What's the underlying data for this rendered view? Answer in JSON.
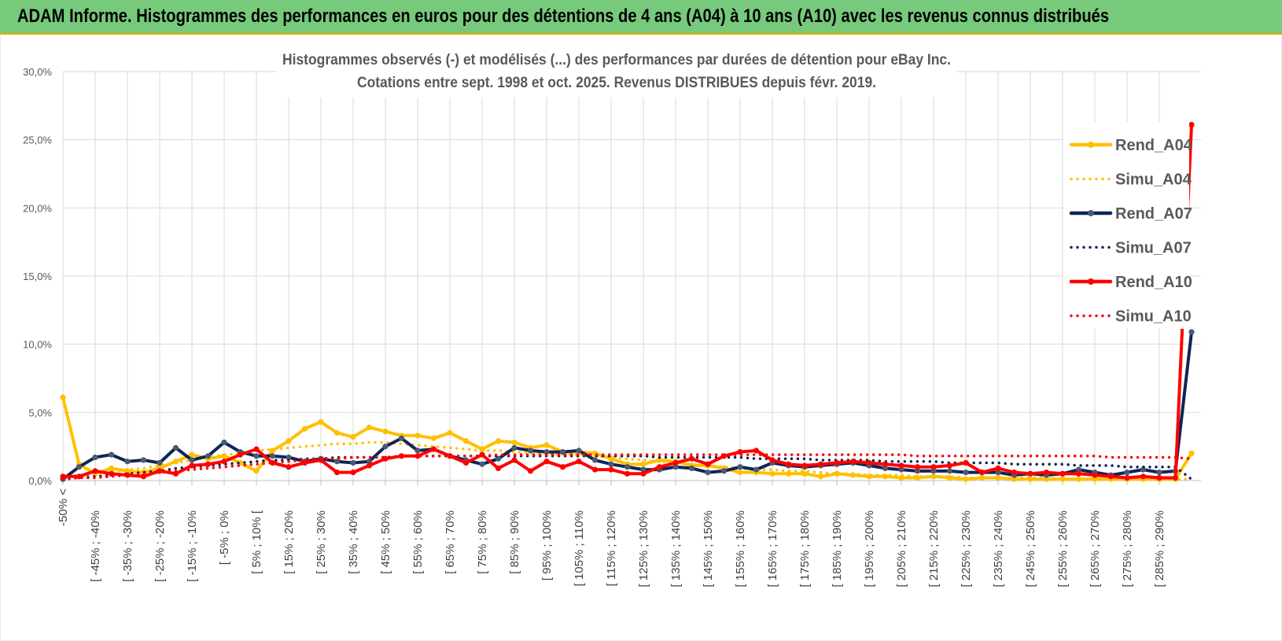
{
  "banner": {
    "title": "ADAM Informe. Histogrammes des performances en euros pour des détentions de 4 ans (A04) à 10 ans (A10) avec les revenus connus distribués"
  },
  "colors": {
    "banner_bg": "#77c97c",
    "banner_border": "#e0b400",
    "a04": "#ffc000",
    "a07": "#0f2557",
    "a07_marker": "#4a5a70",
    "a10": "#ff0000",
    "grid": "#d9d9d9"
  },
  "chart_data": {
    "type": "line",
    "title": "Histogrammes observés (-) et modélisés (...) des performances par durées de détention pour eBay Inc.",
    "subtitle": "Cotations entre sept. 1998 et oct. 2025.  Revenus DISTRIBUES depuis févr. 2019.",
    "ylim": [
      0,
      30
    ],
    "y_ticks": [
      "0,0%",
      "5,0%",
      "10,0%",
      "15,0%",
      "20,0%",
      "25,0%",
      "30,0%"
    ],
    "grid": true,
    "legend_position": "right",
    "category_labels": [
      "-50% <",
      "[ -45% ; -40%",
      "[ -35% ; -30%",
      "[ -25% ; -20%",
      "[ -15% ; -10%",
      "[ -5% ; 0%",
      "[ 5% ; 10% [",
      "[ 15% ; 20%",
      "[ 25% ; 30%",
      "[ 35% ; 40%",
      "[ 45% ; 50%",
      "[ 55% ; 60%",
      "[ 65% ; 70%",
      "[ 75% ; 80%",
      "[ 85% ; 90%",
      "[ 95% ; 100%",
      "[ 105% ; 110%",
      "[ 115% ; 120%",
      "[ 125% ; 130%",
      "[ 135% ; 140%",
      "[ 145% ; 150%",
      "[ 155% ; 160%",
      "[ 165% ; 170%",
      "[ 175% ; 180%",
      "[ 185% ; 190%",
      "[ 195% ; 200%",
      "[ 205% ; 210%",
      "[ 215% ; 220%",
      "[ 225% ; 230%",
      "[ 235% ; 240%",
      "[ 245% ; 250%",
      "[ 255% ; 260%",
      "[ 265% ; 270%",
      "[ 275% ; 280%",
      "[ 285% ; 290%"
    ],
    "series": [
      {
        "name": "Rend_A04",
        "style": "solid",
        "color": "#ffc000",
        "values": [
          6.1,
          1.2,
          0.5,
          0.9,
          0.7,
          0.6,
          0.9,
          1.4,
          1.9,
          1.6,
          1.8,
          1.3,
          0.7,
          2.2,
          2.9,
          3.8,
          4.3,
          3.5,
          3.2,
          3.9,
          3.6,
          3.3,
          3.3,
          3.1,
          3.5,
          2.9,
          2.3,
          2.9,
          2.8,
          2.4,
          2.6,
          2.1,
          2.1,
          2.0,
          1.6,
          1.2,
          1.2,
          1.5,
          1.4,
          1.1,
          1.1,
          0.9,
          0.6,
          0.6,
          0.5,
          0.5,
          0.5,
          0.3,
          0.5,
          0.4,
          0.3,
          0.3,
          0.2,
          0.2,
          0.3,
          0.2,
          0.1,
          0.2,
          0.2,
          0.1,
          0.1,
          0.1,
          0.1,
          0.1,
          0.1,
          0.1,
          0.1,
          0.1,
          0.1,
          0.1,
          2.0
        ]
      },
      {
        "name": "Simu_A04",
        "style": "dotted",
        "color": "#ffc000",
        "values": [
          0.3,
          0.4,
          0.5,
          0.6,
          0.8,
          0.9,
          1.1,
          1.3,
          1.5,
          1.7,
          1.9,
          2.0,
          2.2,
          2.3,
          2.4,
          2.5,
          2.6,
          2.7,
          2.7,
          2.8,
          2.8,
          2.7,
          2.6,
          2.5,
          2.4,
          2.3,
          2.2,
          2.2,
          2.1,
          2.0,
          2.0,
          1.9,
          1.9,
          1.8,
          1.7,
          1.6,
          1.5,
          1.4,
          1.3,
          1.2,
          1.1,
          1.0,
          0.9,
          0.8,
          0.8,
          0.7,
          0.7,
          0.6,
          0.5,
          0.5,
          0.4,
          0.4,
          0.4,
          0.3,
          0.3,
          0.3,
          0.2,
          0.2,
          0.2,
          0.2,
          0.2,
          0.2,
          0.1,
          0.1,
          0.1,
          0.1,
          0.1,
          0.1,
          0.1,
          0.1,
          0.1
        ]
      },
      {
        "name": "Rend_A07",
        "style": "solid",
        "color": "#0f2557",
        "values": [
          0.1,
          1.0,
          1.7,
          1.9,
          1.4,
          1.5,
          1.3,
          2.4,
          1.5,
          1.8,
          2.8,
          2.1,
          1.8,
          1.8,
          1.7,
          1.4,
          1.6,
          1.4,
          1.3,
          1.4,
          2.5,
          3.1,
          2.2,
          2.3,
          1.8,
          1.5,
          1.2,
          1.6,
          2.4,
          2.2,
          2.1,
          2.1,
          2.2,
          1.5,
          1.2,
          1.0,
          0.8,
          0.8,
          1.0,
          0.9,
          0.6,
          0.7,
          1.0,
          0.8,
          1.3,
          1.1,
          1.0,
          1.1,
          1.2,
          1.3,
          1.1,
          0.9,
          0.8,
          0.7,
          0.7,
          0.7,
          0.6,
          0.6,
          0.6,
          0.4,
          0.5,
          0.4,
          0.5,
          0.8,
          0.6,
          0.4,
          0.6,
          0.8,
          0.6,
          0.7,
          10.9
        ]
      },
      {
        "name": "Simu_A07",
        "style": "dotted",
        "color": "#0f2557",
        "values": [
          0.1,
          0.2,
          0.3,
          0.4,
          0.5,
          0.6,
          0.7,
          0.9,
          1.0,
          1.1,
          1.2,
          1.3,
          1.4,
          1.5,
          1.5,
          1.6,
          1.6,
          1.7,
          1.7,
          1.7,
          1.7,
          1.8,
          1.8,
          1.8,
          1.8,
          1.8,
          1.8,
          1.8,
          1.8,
          1.8,
          1.8,
          1.8,
          1.8,
          1.8,
          1.8,
          1.8,
          1.8,
          1.7,
          1.7,
          1.7,
          1.7,
          1.7,
          1.7,
          1.6,
          1.6,
          1.6,
          1.6,
          1.5,
          1.5,
          1.5,
          1.5,
          1.4,
          1.4,
          1.4,
          1.4,
          1.3,
          1.3,
          1.3,
          1.3,
          1.2,
          1.2,
          1.2,
          1.2,
          1.1,
          1.1,
          1.1,
          1.0,
          1.0,
          1.0,
          1.0,
          0.1
        ]
      },
      {
        "name": "Rend_A10",
        "style": "solid",
        "color": "#ff0000",
        "values": [
          0.3,
          0.3,
          0.7,
          0.5,
          0.4,
          0.3,
          0.7,
          0.5,
          1.1,
          1.2,
          1.4,
          1.9,
          2.3,
          1.3,
          1.0,
          1.3,
          1.5,
          0.6,
          0.6,
          1.1,
          1.6,
          1.8,
          1.8,
          2.3,
          1.8,
          1.3,
          1.9,
          0.9,
          1.5,
          0.7,
          1.4,
          1.0,
          1.4,
          0.8,
          0.8,
          0.5,
          0.5,
          1.0,
          1.3,
          1.6,
          1.2,
          1.8,
          2.1,
          2.2,
          1.5,
          1.2,
          1.1,
          1.2,
          1.3,
          1.4,
          1.3,
          1.2,
          1.1,
          1.0,
          1.0,
          1.1,
          1.3,
          0.6,
          0.9,
          0.6,
          0.5,
          0.6,
          0.5,
          0.5,
          0.4,
          0.3,
          0.2,
          0.3,
          0.2,
          0.2,
          26.1
        ]
      },
      {
        "name": "Simu_A10",
        "style": "dotted",
        "color": "#ff0000",
        "values": [
          0.1,
          0.2,
          0.2,
          0.3,
          0.4,
          0.5,
          0.6,
          0.7,
          0.8,
          0.9,
          1.0,
          1.1,
          1.2,
          1.3,
          1.4,
          1.5,
          1.6,
          1.6,
          1.7,
          1.7,
          1.7,
          1.8,
          1.8,
          1.8,
          1.8,
          1.8,
          1.8,
          1.9,
          1.9,
          1.9,
          1.9,
          1.9,
          1.9,
          1.9,
          1.9,
          1.9,
          1.9,
          1.9,
          1.9,
          1.9,
          1.9,
          1.9,
          1.9,
          1.9,
          1.9,
          1.9,
          1.9,
          1.9,
          1.9,
          1.9,
          1.9,
          1.9,
          1.9,
          1.8,
          1.8,
          1.8,
          1.8,
          1.8,
          1.8,
          1.8,
          1.8,
          1.8,
          1.8,
          1.8,
          1.8,
          1.7,
          1.7,
          1.7,
          1.7,
          1.7,
          1.6
        ]
      }
    ]
  }
}
